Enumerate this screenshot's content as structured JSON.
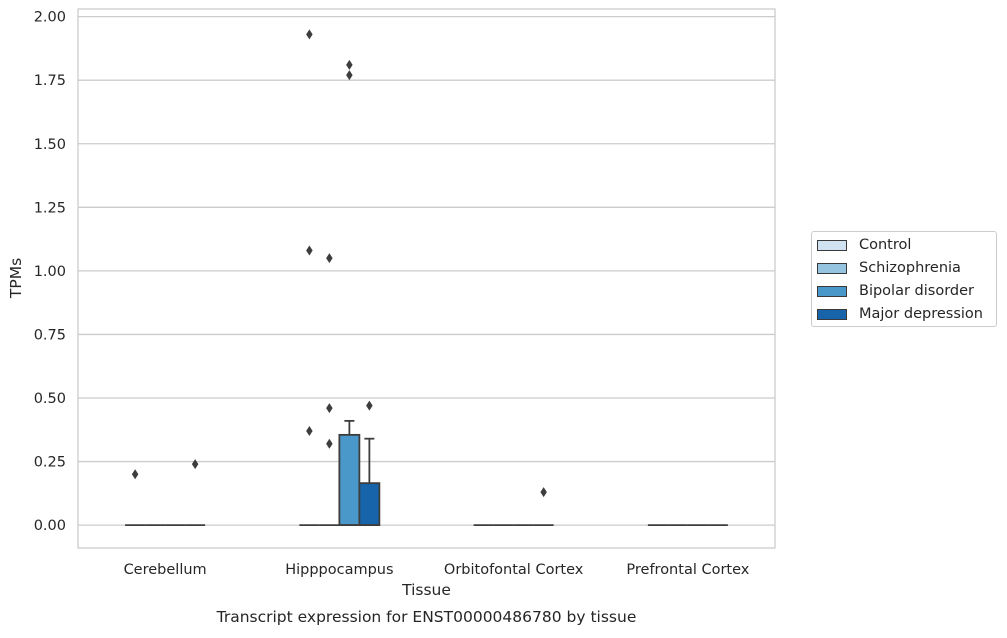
{
  "chart_data": {
    "type": "box",
    "xlabel": "Tissue",
    "ylabel": "TPMs",
    "caption": "Transcript expression for ENST00000486780 by tissue",
    "categories": [
      "Cerebellum",
      "Hipppocampus",
      "Orbitofontal Cortex",
      "Prefrontal Cortex"
    ],
    "ylim": [
      -0.09,
      2.03
    ],
    "yticks": [
      "0.00",
      "0.25",
      "0.50",
      "0.75",
      "1.00",
      "1.25",
      "1.50",
      "1.75",
      "2.00"
    ],
    "ytick_values": [
      0,
      0.25,
      0.5,
      0.75,
      1.0,
      1.25,
      1.5,
      1.75,
      2.0
    ],
    "grid": true,
    "legend_position": "right",
    "series": [
      {
        "name": "Control",
        "color": "#d0e1f2",
        "boxes": [
          {
            "q1": 0,
            "median": 0,
            "q3": 0,
            "whisker_low": 0,
            "whisker_high": 0,
            "outliers": [
              0.2
            ]
          },
          {
            "q1": 0,
            "median": 0,
            "q3": 0,
            "whisker_low": 0,
            "whisker_high": 0,
            "outliers": [
              0.37,
              1.08,
              1.93
            ]
          },
          {
            "q1": 0,
            "median": 0,
            "q3": 0,
            "whisker_low": 0,
            "whisker_high": 0,
            "outliers": []
          },
          {
            "q1": 0,
            "median": 0,
            "q3": 0,
            "whisker_low": 0,
            "whisker_high": 0,
            "outliers": []
          }
        ]
      },
      {
        "name": "Schizophrenia",
        "color": "#94c4df",
        "boxes": [
          {
            "q1": 0,
            "median": 0,
            "q3": 0,
            "whisker_low": 0,
            "whisker_high": 0,
            "outliers": []
          },
          {
            "q1": 0,
            "median": 0,
            "q3": 0,
            "whisker_low": 0,
            "whisker_high": 0,
            "outliers": [
              0.32,
              0.46,
              1.05
            ]
          },
          {
            "q1": 0,
            "median": 0,
            "q3": 0,
            "whisker_low": 0,
            "whisker_high": 0,
            "outliers": []
          },
          {
            "q1": 0,
            "median": 0,
            "q3": 0,
            "whisker_low": 0,
            "whisker_high": 0,
            "outliers": []
          }
        ]
      },
      {
        "name": "Bipolar disorder",
        "color": "#4a98c9",
        "boxes": [
          {
            "q1": 0,
            "median": 0,
            "q3": 0,
            "whisker_low": 0,
            "whisker_high": 0,
            "outliers": []
          },
          {
            "q1": 0,
            "median": 0,
            "q3": 0.355,
            "whisker_low": 0,
            "whisker_high": 0.41,
            "outliers": [
              1.77,
              1.81
            ]
          },
          {
            "q1": 0,
            "median": 0,
            "q3": 0,
            "whisker_low": 0,
            "whisker_high": 0,
            "outliers": []
          },
          {
            "q1": 0,
            "median": 0,
            "q3": 0,
            "whisker_low": 0,
            "whisker_high": 0,
            "outliers": []
          }
        ]
      },
      {
        "name": "Major depression",
        "color": "#1764ab",
        "boxes": [
          {
            "q1": 0,
            "median": 0,
            "q3": 0,
            "whisker_low": 0,
            "whisker_high": 0,
            "outliers": [
              0.24
            ]
          },
          {
            "q1": 0,
            "median": 0,
            "q3": 0.165,
            "whisker_low": 0,
            "whisker_high": 0.34,
            "outliers": [
              0.47
            ]
          },
          {
            "q1": 0,
            "median": 0,
            "q3": 0,
            "whisker_low": 0,
            "whisker_high": 0,
            "outliers": [
              0.13
            ]
          },
          {
            "q1": 0,
            "median": 0,
            "q3": 0,
            "whisker_low": 0,
            "whisker_high": 0,
            "outliers": []
          }
        ]
      }
    ]
  }
}
